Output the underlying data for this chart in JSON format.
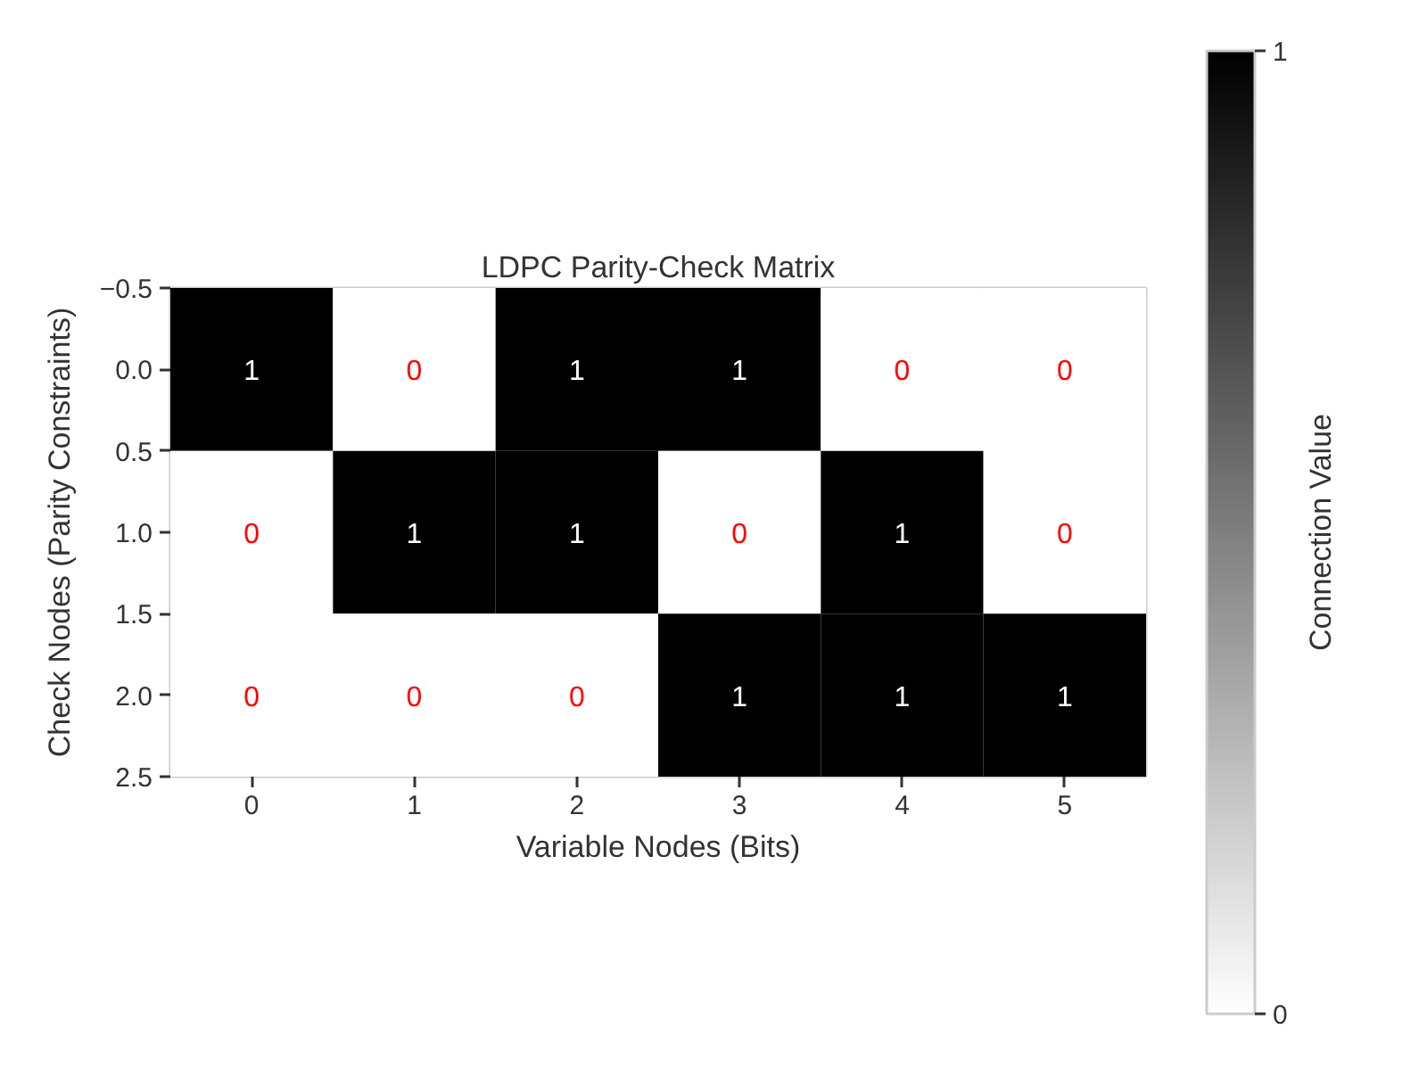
{
  "chart_data": {
    "type": "heatmap",
    "title": "LDPC Parity-Check Matrix",
    "xlabel": "Variable Nodes (Bits)",
    "ylabel": "Check Nodes (Parity Constraints)",
    "clabel": "Connection Value",
    "categories": [
      "0",
      "1",
      "2",
      "3",
      "4",
      "5"
    ],
    "cells": [
      [
        1,
        0,
        1,
        1,
        0,
        0
      ],
      [
        0,
        1,
        1,
        0,
        1,
        0
      ],
      [
        0,
        0,
        0,
        1,
        1,
        1
      ]
    ],
    "ylim": [
      2.5,
      -0.5
    ],
    "yticks": [
      {
        "value": -0.5,
        "label": "−0.5"
      },
      {
        "value": 0,
        "label": "0.0"
      },
      {
        "value": 0.5,
        "label": "0.5"
      },
      {
        "value": 1,
        "label": "1.0"
      },
      {
        "value": 1.5,
        "label": "1.5"
      },
      {
        "value": 2,
        "label": "2.0"
      },
      {
        "value": 2.5,
        "label": "2.5"
      }
    ],
    "clim": [
      0,
      1
    ],
    "cticks": [
      0,
      1
    ],
    "data_labels": true
  }
}
